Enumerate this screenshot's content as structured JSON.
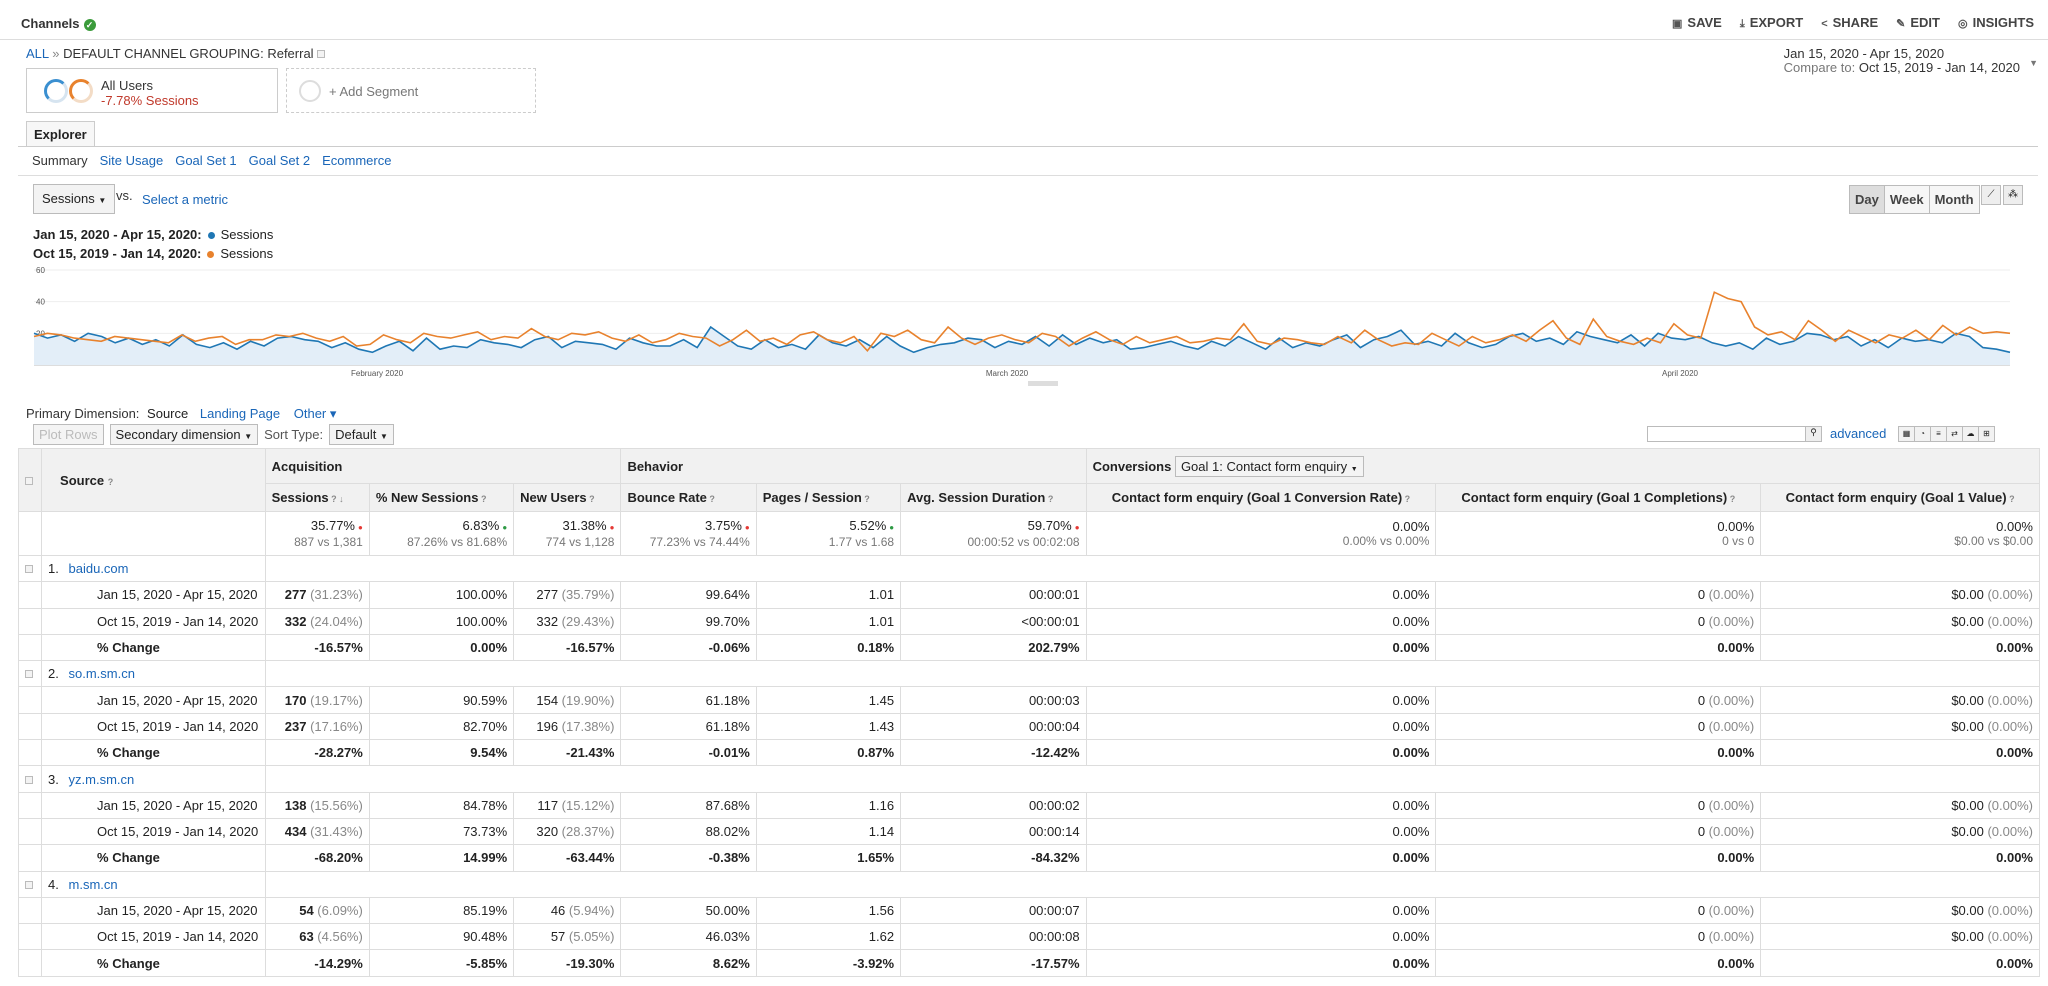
{
  "header": {
    "title": "Channels",
    "actions": [
      {
        "label": "SAVE",
        "icon": "save-icon"
      },
      {
        "label": "EXPORT",
        "icon": "export-icon"
      },
      {
        "label": "SHARE",
        "icon": "share-icon"
      },
      {
        "label": "EDIT",
        "icon": "edit-icon"
      },
      {
        "label": "INSIGHTS",
        "icon": "insights-icon"
      }
    ]
  },
  "breadcrumb": {
    "all": "ALL",
    "sep": "»",
    "path": "DEFAULT CHANNEL GROUPING: Referral"
  },
  "dates": {
    "current": "Jan 15, 2020 - Apr 15, 2020",
    "compare_label": "Compare to:",
    "compare": "Oct 15, 2019 - Jan 14, 2020"
  },
  "segments": {
    "name": "All Users",
    "change": "-7.78% Sessions",
    "add": "+ Add Segment"
  },
  "tabs": {
    "explorer": "Explorer",
    "sub": [
      "Summary",
      "Site Usage",
      "Goal Set 1",
      "Goal Set 2",
      "Ecommerce"
    ]
  },
  "metric": {
    "selected": "Sessions",
    "vs": "vs.",
    "select": "Select a metric"
  },
  "granularity": [
    "Day",
    "Week",
    "Month"
  ],
  "legend": [
    {
      "period": "Jan 15, 2020 - Apr 15, 2020:",
      "metric": "Sessions",
      "color": "#1f77b4"
    },
    {
      "period": "Oct 15, 2019 - Jan 14, 2020:",
      "metric": "Sessions",
      "color": "#e8822d"
    }
  ],
  "chart_data": {
    "type": "line",
    "yticks": [
      "60",
      "40",
      "20"
    ],
    "xticks": [
      "February 2020",
      "March 2020",
      "April 2020"
    ],
    "ylim": [
      0,
      60
    ],
    "series": [
      {
        "name": "Sessions",
        "period": "Jan 15, 2020 - Apr 15, 2020",
        "values": [
          20,
          17,
          19,
          15,
          20,
          18,
          14,
          17,
          13,
          16,
          12,
          19,
          13,
          11,
          14,
          10,
          15,
          12,
          17,
          18,
          16,
          15,
          11,
          14,
          10,
          8,
          12,
          15,
          9,
          17,
          10,
          12,
          11,
          16,
          14,
          13,
          11,
          16,
          18,
          11,
          15,
          14,
          13,
          10,
          17,
          14,
          12,
          12,
          16,
          11,
          24,
          18,
          12,
          10,
          16,
          11,
          13,
          10,
          19,
          14,
          12,
          16,
          11,
          18,
          12,
          8,
          11,
          13,
          14,
          17,
          16,
          11,
          15,
          13,
          18,
          12,
          19,
          13,
          17,
          14,
          16,
          10,
          11,
          13,
          15,
          12,
          10,
          15,
          12,
          18,
          14,
          10,
          17,
          11,
          14,
          12,
          16,
          19,
          11,
          16,
          18,
          22,
          13,
          15,
          12,
          20,
          14,
          11,
          13,
          18,
          20,
          15,
          17,
          13,
          21,
          18,
          16,
          14,
          19,
          12,
          20,
          17,
          16,
          18,
          14,
          12,
          14,
          10,
          17,
          13,
          15,
          20,
          19,
          16,
          18,
          12,
          16,
          11,
          17,
          15,
          16,
          14,
          20,
          18,
          11,
          10,
          8
        ]
      },
      {
        "name": "Sessions",
        "period": "Oct 15, 2019 - Jan 14, 2020",
        "values": [
          18,
          20,
          19,
          17,
          16,
          15,
          18,
          17,
          16,
          15,
          14,
          19,
          15,
          17,
          18,
          13,
          16,
          16,
          19,
          18,
          20,
          17,
          15,
          18,
          12,
          13,
          19,
          16,
          14,
          20,
          18,
          17,
          19,
          21,
          16,
          18,
          17,
          23,
          18,
          16,
          20,
          19,
          21,
          17,
          15,
          19,
          14,
          16,
          20,
          18,
          17,
          12,
          16,
          22,
          15,
          17,
          13,
          19,
          21,
          16,
          14,
          18,
          9,
          20,
          18,
          22,
          16,
          14,
          24,
          17,
          13,
          17,
          19,
          16,
          14,
          20,
          18,
          12,
          17,
          21,
          16,
          13,
          18,
          14,
          16,
          18,
          14,
          15,
          17,
          16,
          26,
          15,
          13,
          17,
          16,
          14,
          13,
          18,
          14,
          22,
          16,
          12,
          14,
          13,
          20,
          16,
          12,
          18,
          14,
          16,
          19,
          15,
          22,
          28,
          17,
          13,
          29,
          18,
          15,
          13,
          17,
          14,
          26,
          19,
          17,
          46,
          42,
          40,
          24,
          19,
          21,
          16,
          28,
          22,
          15,
          22,
          18,
          14,
          19,
          17,
          22,
          16,
          25,
          19,
          24,
          20,
          21,
          20
        ]
      }
    ]
  },
  "dimension": {
    "label": "Primary Dimension:",
    "current": "Source",
    "other1": "Landing Page",
    "other2": "Other"
  },
  "controls": {
    "plot": "Plot Rows",
    "secondary": "Secondary dimension",
    "sort_label": "Sort Type:",
    "sort": "Default",
    "advanced": "advanced"
  },
  "table": {
    "groups": {
      "acq": "Acquisition",
      "beh": "Behavior",
      "conv": "Conversions",
      "goal": "Goal 1: Contact form enquiry"
    },
    "cols": [
      "Source",
      "Sessions",
      "% New Sessions",
      "New Users",
      "Bounce Rate",
      "Pages / Session",
      "Avg. Session Duration",
      "Contact form enquiry (Goal 1 Conversion Rate)",
      "Contact form enquiry (Goal 1 Completions)",
      "Contact form enquiry (Goal 1 Value)"
    ],
    "totals": [
      {
        "v": "35.77%",
        "s": "887 vs 1,381",
        "d": "red"
      },
      {
        "v": "6.83%",
        "s": "87.26% vs 81.68%",
        "d": "green"
      },
      {
        "v": "31.38%",
        "s": "774 vs 1,128",
        "d": "red"
      },
      {
        "v": "3.75%",
        "s": "77.23% vs 74.44%",
        "d": "red"
      },
      {
        "v": "5.52%",
        "s": "1.77 vs 1.68",
        "d": "green"
      },
      {
        "v": "59.70%",
        "s": "00:00:52 vs 00:02:08",
        "d": "red"
      },
      {
        "v": "0.00%",
        "s": "0.00% vs 0.00%",
        "d": ""
      },
      {
        "v": "0.00%",
        "s": "0 vs 0",
        "d": ""
      },
      {
        "v": "0.00%",
        "s": "$0.00 vs $0.00",
        "d": ""
      }
    ],
    "rows": [
      {
        "idx": "1.",
        "src": "baidu.com",
        "r": [
          [
            "Jan 15, 2020 - Apr 15, 2020",
            "277",
            "(31.23%)",
            "100.00%",
            "277",
            "(35.79%)",
            "99.64%",
            "1.01",
            "00:00:01",
            "0.00%",
            "0",
            "(0.00%)",
            "$0.00",
            "(0.00%)"
          ],
          [
            "Oct 15, 2019 - Jan 14, 2020",
            "332",
            "(24.04%)",
            "100.00%",
            "332",
            "(29.43%)",
            "99.70%",
            "1.01",
            "<00:00:01",
            "0.00%",
            "0",
            "(0.00%)",
            "$0.00",
            "(0.00%)"
          ],
          [
            "% Change",
            "-16.57%",
            "",
            "0.00%",
            "-16.57%",
            "",
            "-0.06%",
            "0.18%",
            "202.79%",
            "0.00%",
            "0.00%",
            "",
            "0.00%",
            ""
          ]
        ]
      },
      {
        "idx": "2.",
        "src": "so.m.sm.cn",
        "r": [
          [
            "Jan 15, 2020 - Apr 15, 2020",
            "170",
            "(19.17%)",
            "90.59%",
            "154",
            "(19.90%)",
            "61.18%",
            "1.45",
            "00:00:03",
            "0.00%",
            "0",
            "(0.00%)",
            "$0.00",
            "(0.00%)"
          ],
          [
            "Oct 15, 2019 - Jan 14, 2020",
            "237",
            "(17.16%)",
            "82.70%",
            "196",
            "(17.38%)",
            "61.18%",
            "1.43",
            "00:00:04",
            "0.00%",
            "0",
            "(0.00%)",
            "$0.00",
            "(0.00%)"
          ],
          [
            "% Change",
            "-28.27%",
            "",
            "9.54%",
            "-21.43%",
            "",
            "-0.01%",
            "0.87%",
            "-12.42%",
            "0.00%",
            "0.00%",
            "",
            "0.00%",
            ""
          ]
        ]
      },
      {
        "idx": "3.",
        "src": "yz.m.sm.cn",
        "r": [
          [
            "Jan 15, 2020 - Apr 15, 2020",
            "138",
            "(15.56%)",
            "84.78%",
            "117",
            "(15.12%)",
            "87.68%",
            "1.16",
            "00:00:02",
            "0.00%",
            "0",
            "(0.00%)",
            "$0.00",
            "(0.00%)"
          ],
          [
            "Oct 15, 2019 - Jan 14, 2020",
            "434",
            "(31.43%)",
            "73.73%",
            "320",
            "(28.37%)",
            "88.02%",
            "1.14",
            "00:00:14",
            "0.00%",
            "0",
            "(0.00%)",
            "$0.00",
            "(0.00%)"
          ],
          [
            "% Change",
            "-68.20%",
            "",
            "14.99%",
            "-63.44%",
            "",
            "-0.38%",
            "1.65%",
            "-84.32%",
            "0.00%",
            "0.00%",
            "",
            "0.00%",
            ""
          ]
        ]
      },
      {
        "idx": "4.",
        "src": "m.sm.cn",
        "r": [
          [
            "Jan 15, 2020 - Apr 15, 2020",
            "54",
            "(6.09%)",
            "85.19%",
            "46",
            "(5.94%)",
            "50.00%",
            "1.56",
            "00:00:07",
            "0.00%",
            "0",
            "(0.00%)",
            "$0.00",
            "(0.00%)"
          ],
          [
            "Oct 15, 2019 - Jan 14, 2020",
            "63",
            "(4.56%)",
            "90.48%",
            "57",
            "(5.05%)",
            "46.03%",
            "1.62",
            "00:00:08",
            "0.00%",
            "0",
            "(0.00%)",
            "$0.00",
            "(0.00%)"
          ],
          [
            "% Change",
            "-14.29%",
            "",
            "-5.85%",
            "-19.30%",
            "",
            "8.62%",
            "-3.92%",
            "-17.57%",
            "0.00%",
            "0.00%",
            "",
            "0.00%",
            ""
          ]
        ]
      }
    ]
  }
}
